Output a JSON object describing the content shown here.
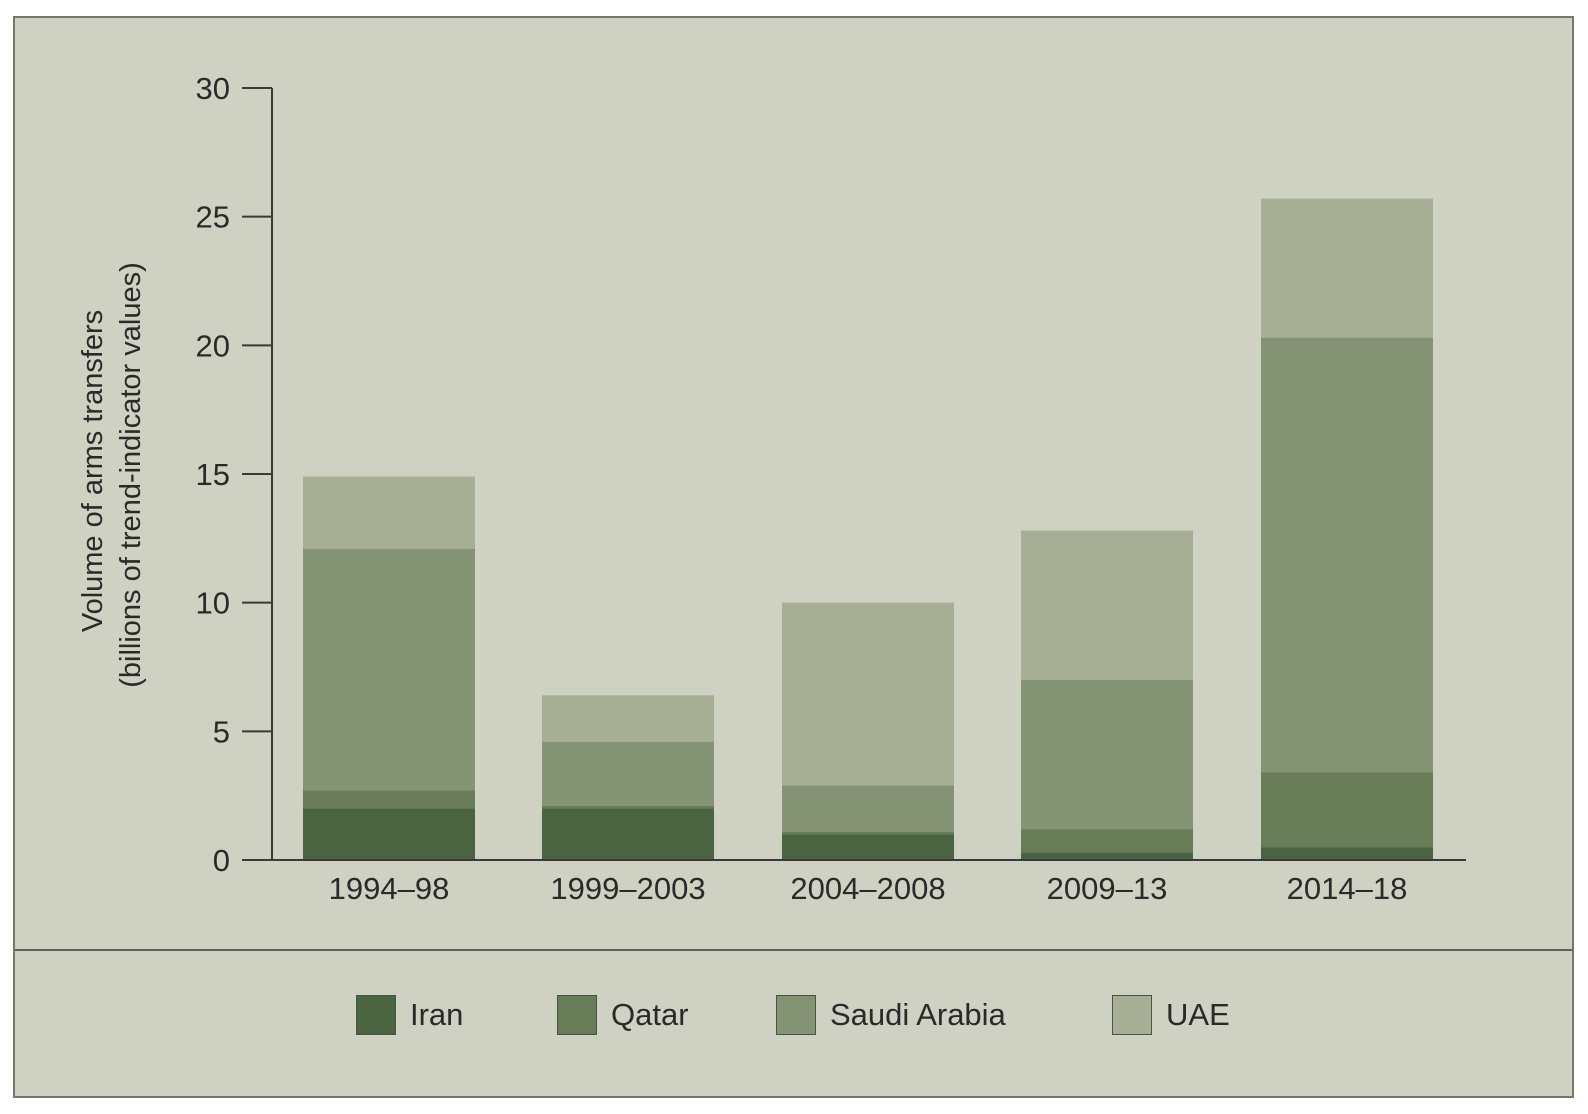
{
  "chart_data": {
    "type": "bar",
    "stacked": true,
    "categories": [
      "1994–98",
      "1999–2003",
      "2004–2008",
      "2009–13",
      "2014–18"
    ],
    "series": [
      {
        "name": "Iran",
        "color": "#4a6340",
        "values": [
          2.0,
          2.0,
          1.0,
          0.3,
          0.5
        ]
      },
      {
        "name": "Qatar",
        "color": "#687c57",
        "values": [
          0.7,
          0.1,
          0.1,
          0.9,
          2.9
        ]
      },
      {
        "name": "Saudi Arabia",
        "color": "#849373",
        "values": [
          9.4,
          2.5,
          1.8,
          5.8,
          16.9
        ]
      },
      {
        "name": "UAE",
        "color": "#a7ae96",
        "values": [
          2.8,
          1.8,
          7.1,
          5.8,
          5.4
        ]
      }
    ],
    "ylabel_line1": "Volume of arms transfers",
    "ylabel_line2": "(billions of trend-indicator values)",
    "ylim": [
      0,
      30
    ],
    "yticks": [
      0,
      5,
      10,
      15,
      20,
      25,
      30
    ],
    "grid": false,
    "legend_position": "bottom"
  },
  "colors": {
    "background": "#cfd1c2",
    "axis": "#3a3a3a",
    "text": "#2a2a2a"
  }
}
